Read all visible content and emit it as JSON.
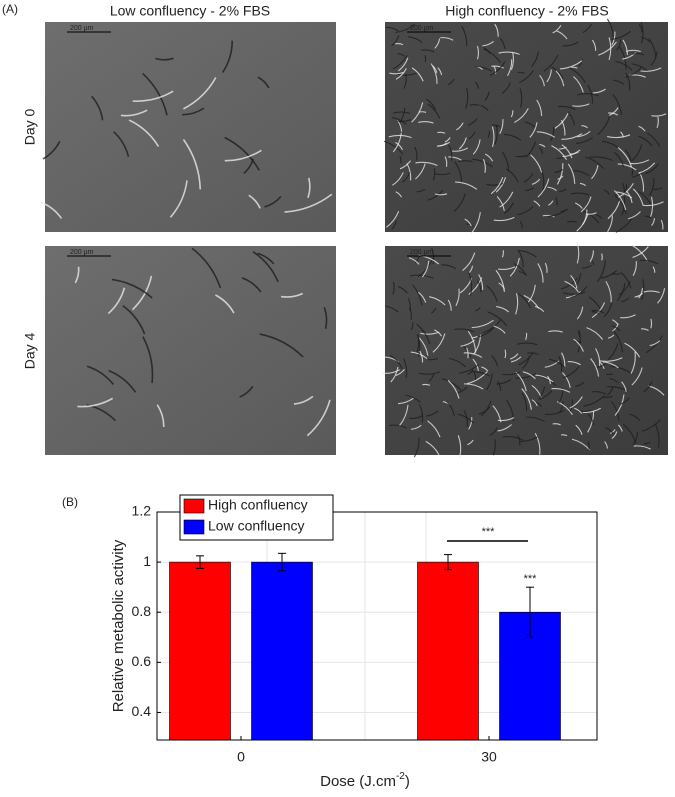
{
  "panel_a": {
    "label": "(A)",
    "columns": [
      "Low confluency - 2% FBS",
      "High confluency - 2% FBS"
    ],
    "rows": [
      "Day 0",
      "Day 4"
    ],
    "scale_bar": "200 µm"
  },
  "chart_data": {
    "type": "bar",
    "panel_label": "(B)",
    "y_label": "Relative metabolic activity",
    "x_label": {
      "text": "Dose (J.cm",
      "sup": "-2",
      "end": ")"
    },
    "categories": [
      "0",
      "30"
    ],
    "series": [
      {
        "name": "High confluency",
        "color": "#ff0000",
        "values": [
          1,
          1
        ],
        "errors": [
          0.025,
          0.03
        ]
      },
      {
        "name": "Low confluency",
        "color": "#0000ff",
        "values": [
          1,
          0.8
        ],
        "errors": [
          0.035,
          0.1
        ]
      }
    ],
    "annotations": [
      "***",
      "***"
    ],
    "ylim": [
      0.29,
      1.2
    ],
    "yticks": [
      0.4,
      0.6,
      0.8,
      1,
      1.2
    ],
    "grid": true,
    "legend": "top-left"
  }
}
